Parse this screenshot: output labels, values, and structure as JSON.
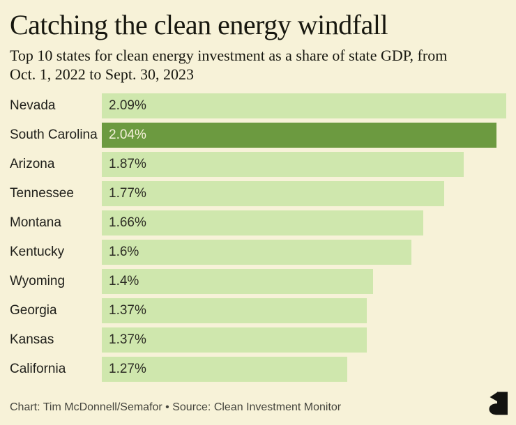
{
  "header": {
    "title": "Catching the clean energy windfall",
    "subtitle_lines": [
      "Top 10 states for clean energy investment as a share of state GDP, from",
      "Oct. 1, 2022 to Sept. 30, 2023"
    ]
  },
  "chart_data": {
    "type": "bar",
    "orientation": "horizontal",
    "title": "Catching the clean energy windfall",
    "subtitle": "Top 10 states for clean energy investment as a share of state GDP, from Oct. 1, 2022 to Sept. 30, 2023",
    "categories": [
      "Nevada",
      "South Carolina",
      "Arizona",
      "Tennessee",
      "Montana",
      "Kentucky",
      "Wyoming",
      "Georgia",
      "Kansas",
      "California"
    ],
    "values": [
      2.09,
      2.04,
      1.87,
      1.77,
      1.66,
      1.6,
      1.4,
      1.37,
      1.37,
      1.27
    ],
    "value_labels": [
      "2.09%",
      "2.04%",
      "1.87%",
      "1.77%",
      "1.66%",
      "1.6%",
      "1.4%",
      "1.37%",
      "1.37%",
      "1.27%"
    ],
    "highlighted_index": 1,
    "highlighted_category": "South Carolina",
    "unit": "%",
    "xlim": [
      0,
      2.09
    ],
    "grid": false,
    "legend": false,
    "value_label_position": "inside-start"
  },
  "footer": {
    "credit": "Chart: Tim McDonnell/Semafor • Source: Clean Investment Monitor",
    "logo": "semafor-logo"
  },
  "colors": {
    "background": "#f7f2d8",
    "bar": "#cfe7ad",
    "bar_highlight": "#6c9a40",
    "title_text": "#17170f",
    "label_text": "#20201b",
    "value_text": "#2c2c24",
    "value_text_highlight": "#f6f2da",
    "footer_text": "#44443c",
    "logo_color": "#131310"
  }
}
